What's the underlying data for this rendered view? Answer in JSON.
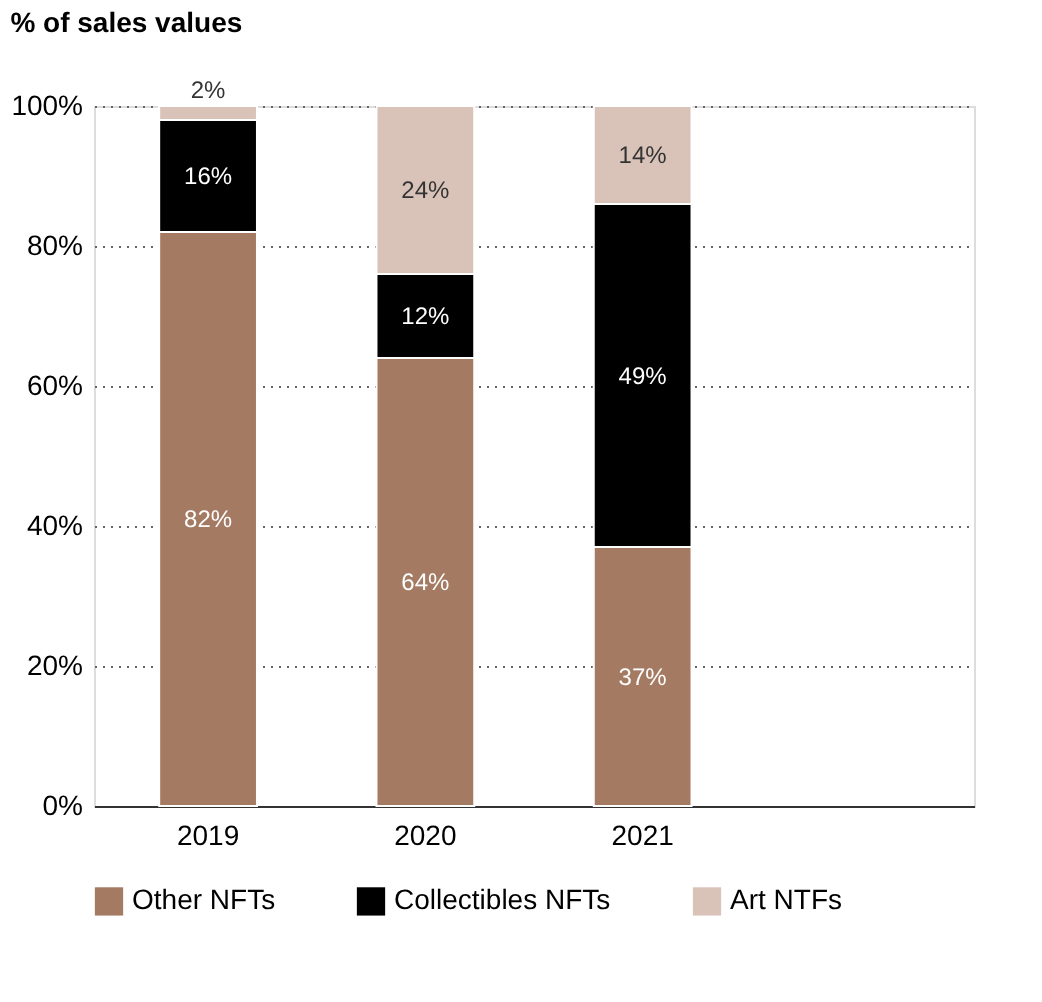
{
  "chart_data": {
    "type": "bar",
    "title": "% of sales values",
    "categories": [
      "2019",
      "2020",
      "2021"
    ],
    "stacked": true,
    "series": [
      {
        "name": "Other NFTs",
        "color": "#a47a62",
        "values": [
          82,
          64,
          37
        ],
        "value_labels": [
          "82%",
          "64%",
          "37%"
        ]
      },
      {
        "name": "Collectibles NFTs",
        "color": "#000000",
        "values": [
          16,
          12,
          49
        ],
        "value_labels": [
          "16%",
          "12%",
          "49%"
        ]
      },
      {
        "name": "Art NTFs",
        "color": "#d9c3b9",
        "values": [
          2,
          24,
          14
        ],
        "value_labels": [
          "2%",
          "24%",
          "14%"
        ]
      }
    ],
    "ylim": [
      0,
      100
    ],
    "yticks": [
      {
        "value": 0,
        "label": "0%"
      },
      {
        "value": 20,
        "label": "20%"
      },
      {
        "value": 40,
        "label": "40%"
      },
      {
        "value": 60,
        "label": "60%"
      },
      {
        "value": 80,
        "label": "80%"
      },
      {
        "value": 100,
        "label": "100%"
      }
    ],
    "grid": "y",
    "legend": "bottom"
  }
}
